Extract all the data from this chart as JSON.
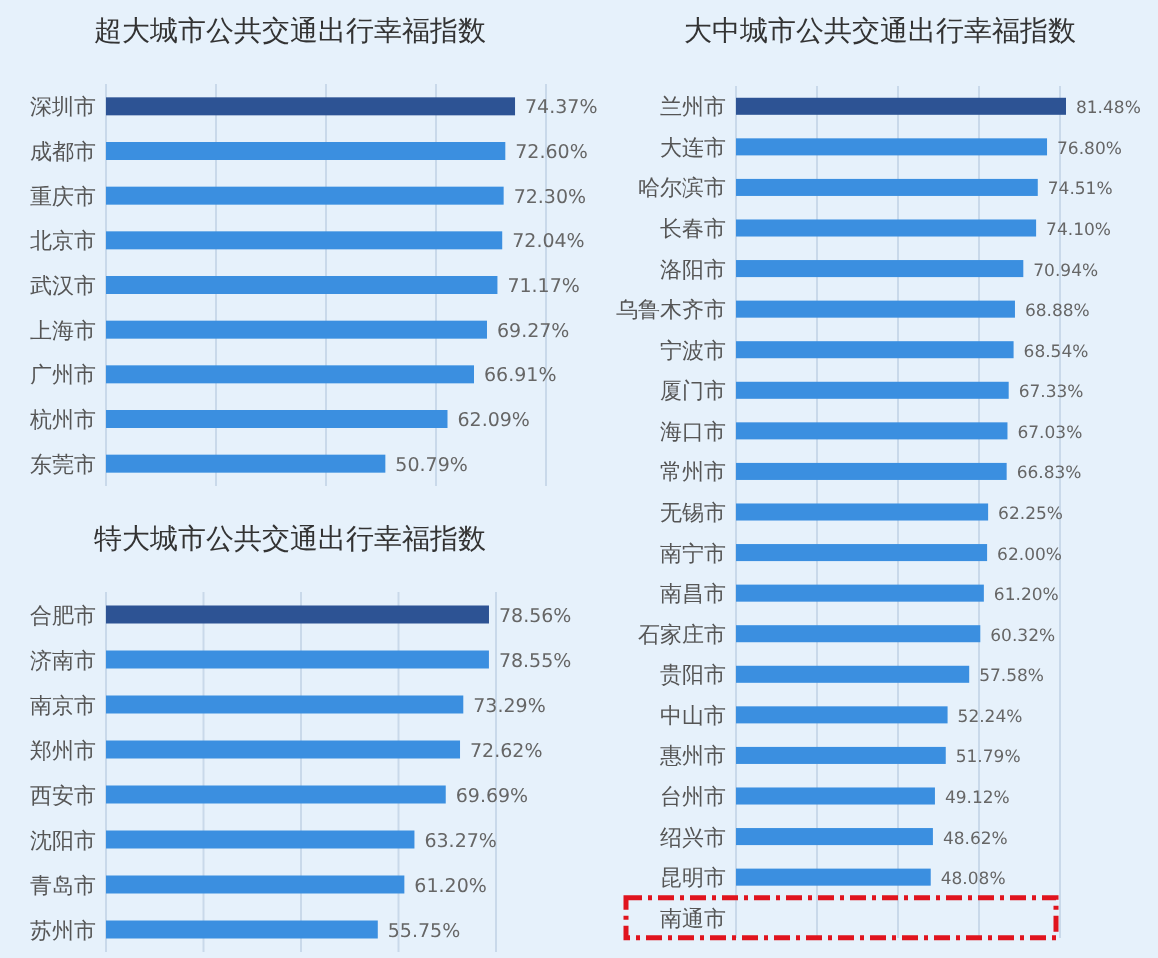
{
  "chart_data": [
    {
      "type": "bar",
      "orientation": "horizontal",
      "title": "超大城市公共交通出行幸福指数",
      "categories": [
        "深圳市",
        "成都市",
        "重庆市",
        "北京市",
        "武汉市",
        "上海市",
        "广州市",
        "杭州市",
        "东莞市"
      ],
      "values": [
        74.37,
        72.6,
        72.3,
        72.04,
        71.17,
        69.27,
        66.91,
        62.09,
        50.79
      ],
      "value_labels": [
        "74.37%",
        "72.60%",
        "72.30%",
        "72.04%",
        "71.17%",
        "69.27%",
        "66.91%",
        "62.09%",
        "50.79%"
      ],
      "colors": [
        "#2d5394",
        "#3b8fe0",
        "#3b8fe0",
        "#3b8fe0",
        "#3b8fe0",
        "#3b8fe0",
        "#3b8fe0",
        "#3b8fe0",
        "#3b8fe0"
      ],
      "xticks": [
        {
          "value": 0,
          "label": null
        },
        {
          "value": 20,
          "label": null
        },
        {
          "value": 40,
          "label": null
        },
        {
          "value": 60,
          "label": null
        },
        {
          "value": 80,
          "label": null
        }
      ],
      "grid": "x",
      "tick_labels": "y"
    },
    {
      "type": "bar",
      "orientation": "horizontal",
      "title": "特大城市公共交通出行幸福指数",
      "categories": [
        "合肥市",
        "济南市",
        "南京市",
        "郑州市",
        "西安市",
        "沈阳市",
        "青岛市",
        "苏州市"
      ],
      "values": [
        78.56,
        78.55,
        73.29,
        72.62,
        69.69,
        63.27,
        61.2,
        55.75
      ],
      "value_labels": [
        "78.56%",
        "78.55%",
        "73.29%",
        "72.62%",
        "69.69%",
        "63.27%",
        "61.20%",
        "55.75%"
      ],
      "colors": [
        "#2d5394",
        "#3b8fe0",
        "#3b8fe0",
        "#3b8fe0",
        "#3b8fe0",
        "#3b8fe0",
        "#3b8fe0",
        "#3b8fe0"
      ],
      "xticks": [
        {
          "value": 0,
          "label": null
        },
        {
          "value": 20,
          "label": null
        },
        {
          "value": 40,
          "label": null
        },
        {
          "value": 60,
          "label": null
        },
        {
          "value": 80,
          "label": null
        }
      ],
      "grid": "x",
      "tick_labels": "y"
    },
    {
      "type": "bar",
      "orientation": "horizontal",
      "title": "大中城市公共交通出行幸福指数",
      "categories": [
        "兰州市",
        "大连市",
        "哈尔滨市",
        "长春市",
        "洛阳市",
        "乌鲁木齐市",
        "宁波市",
        "厦门市",
        "海口市",
        "常州市",
        "无锡市",
        "南宁市",
        "南昌市",
        "石家庄市",
        "贵阳市",
        "中山市",
        "惠州市",
        "台州市",
        "绍兴市",
        "昆明市",
        "南通市"
      ],
      "values": [
        81.48,
        76.8,
        74.51,
        74.1,
        70.94,
        68.88,
        68.54,
        67.33,
        67.03,
        66.83,
        62.25,
        62.0,
        61.2,
        60.32,
        57.58,
        52.24,
        51.79,
        49.12,
        48.62,
        48.08,
        null
      ],
      "value_labels": [
        "81.48%",
        "76.80%",
        "74.51%",
        "74.10%",
        "70.94%",
        "68.88%",
        "68.54%",
        "67.33%",
        "67.03%",
        "66.83%",
        "62.25%",
        "62.00%",
        "61.20%",
        "60.32%",
        "57.58%",
        "52.24%",
        "51.79%",
        "49.12%",
        "48.62%",
        "48.08%",
        null
      ],
      "colors": [
        "#2d5394",
        "#3b8fe0",
        "#3b8fe0",
        "#3b8fe0",
        "#3b8fe0",
        "#3b8fe0",
        "#3b8fe0",
        "#3b8fe0",
        "#3b8fe0",
        "#3b8fe0",
        "#3b8fe0",
        "#3b8fe0",
        "#3b8fe0",
        "#3b8fe0",
        "#3b8fe0",
        "#3b8fe0",
        "#3b8fe0",
        "#3b8fe0",
        "#3b8fe0",
        "#3b8fe0",
        "#3b8fe0"
      ],
      "xticks": [
        {
          "value": 0,
          "label": null
        },
        {
          "value": 20,
          "label": null
        },
        {
          "value": 40,
          "label": null
        },
        {
          "value": 60,
          "label": null
        },
        {
          "value": 80,
          "label": null
        }
      ],
      "grid": "x",
      "tick_labels": "y"
    }
  ]
}
